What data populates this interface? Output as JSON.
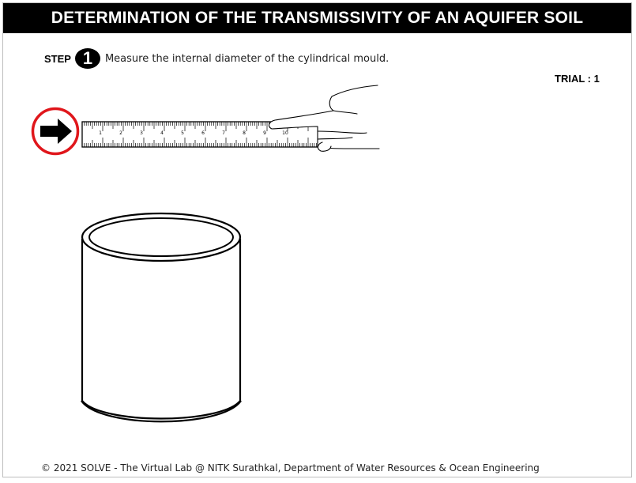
{
  "header": {
    "title": "DETERMINATION OF THE TRANSMISSIVITY OF AN AQUIFER SOIL"
  },
  "step": {
    "label": "STEP",
    "number": "1",
    "instruction": "Measure the internal diameter of the cylindrical mould."
  },
  "trial": {
    "text": "TRIAL : 1"
  },
  "ruler": {
    "numbers": [
      "1",
      "2",
      "3",
      "4",
      "5",
      "6",
      "7",
      "8",
      "9",
      "10"
    ]
  },
  "icons": {
    "arrow": "right-arrow-icon",
    "hand": "hand-icon"
  },
  "colors": {
    "highlight_ring": "#e0161b",
    "header_bg": "#000000"
  },
  "footer": {
    "text": "© 2021 SOLVE - The Virtual Lab @ NITK Surathkal, Department of Water Resources & Ocean Engineering"
  }
}
